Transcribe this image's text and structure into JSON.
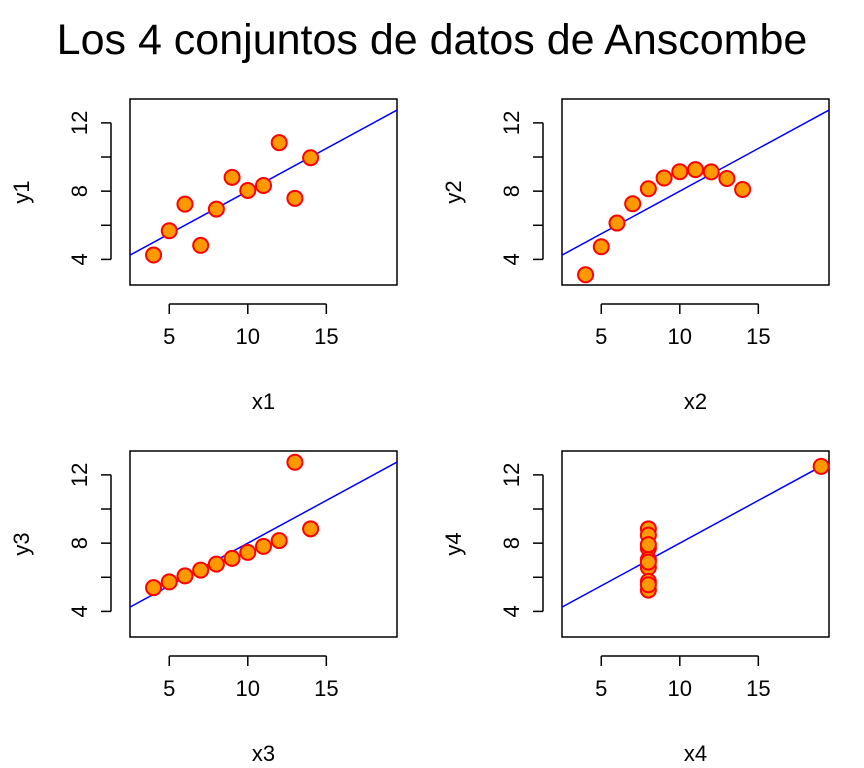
{
  "title": "Los 4 conjuntos de datos de Anscombe",
  "colors": {
    "point_fill": "#FF9900",
    "point_stroke": "#FF0000",
    "line": "#0000FF",
    "axis": "#000000"
  },
  "chart_data": [
    {
      "type": "scatter",
      "xlabel": "x1",
      "ylabel": "y1",
      "xlim": [
        2.5,
        19.5
      ],
      "ylim": [
        2.5,
        13.4
      ],
      "xticks": [
        5,
        10,
        15
      ],
      "yticks": [
        4,
        6,
        8,
        10,
        12
      ],
      "yticklabels": [
        "4",
        "",
        "8",
        "",
        "12"
      ],
      "x": [
        10,
        8,
        13,
        9,
        11,
        14,
        6,
        4,
        12,
        7,
        5
      ],
      "y": [
        8.04,
        6.95,
        7.58,
        8.81,
        8.33,
        9.96,
        7.24,
        4.26,
        10.84,
        4.82,
        5.68
      ],
      "fit": {
        "intercept": 3.0,
        "slope": 0.5
      }
    },
    {
      "type": "scatter",
      "xlabel": "x2",
      "ylabel": "y2",
      "xlim": [
        2.5,
        19.5
      ],
      "ylim": [
        2.5,
        13.4
      ],
      "xticks": [
        5,
        10,
        15
      ],
      "yticks": [
        4,
        6,
        8,
        10,
        12
      ],
      "yticklabels": [
        "4",
        "",
        "8",
        "",
        "12"
      ],
      "x": [
        10,
        8,
        13,
        9,
        11,
        14,
        6,
        4,
        12,
        7,
        5
      ],
      "y": [
        9.14,
        8.14,
        8.74,
        8.77,
        9.26,
        8.1,
        6.13,
        3.1,
        9.13,
        7.26,
        4.74
      ],
      "fit": {
        "intercept": 3.0,
        "slope": 0.5
      }
    },
    {
      "type": "scatter",
      "xlabel": "x3",
      "ylabel": "y3",
      "xlim": [
        2.5,
        19.5
      ],
      "ylim": [
        2.5,
        13.4
      ],
      "xticks": [
        5,
        10,
        15
      ],
      "yticks": [
        4,
        6,
        8,
        10,
        12
      ],
      "yticklabels": [
        "4",
        "",
        "8",
        "",
        "12"
      ],
      "x": [
        10,
        8,
        13,
        9,
        11,
        14,
        6,
        4,
        12,
        7,
        5
      ],
      "y": [
        7.46,
        6.77,
        12.74,
        7.11,
        7.81,
        8.84,
        6.08,
        5.39,
        8.15,
        6.42,
        5.73
      ],
      "fit": {
        "intercept": 3.0,
        "slope": 0.5
      }
    },
    {
      "type": "scatter",
      "xlabel": "x4",
      "ylabel": "y4",
      "xlim": [
        2.5,
        19.5
      ],
      "ylim": [
        2.5,
        13.4
      ],
      "xticks": [
        5,
        10,
        15
      ],
      "yticks": [
        4,
        6,
        8,
        10,
        12
      ],
      "yticklabels": [
        "4",
        "",
        "8",
        "",
        "12"
      ],
      "x": [
        8,
        8,
        8,
        8,
        8,
        8,
        8,
        19,
        8,
        8,
        8
      ],
      "y": [
        6.58,
        5.76,
        7.71,
        8.84,
        8.47,
        7.04,
        5.25,
        12.5,
        5.56,
        7.91,
        6.89
      ],
      "fit": {
        "intercept": 3.0,
        "slope": 0.5
      }
    }
  ]
}
